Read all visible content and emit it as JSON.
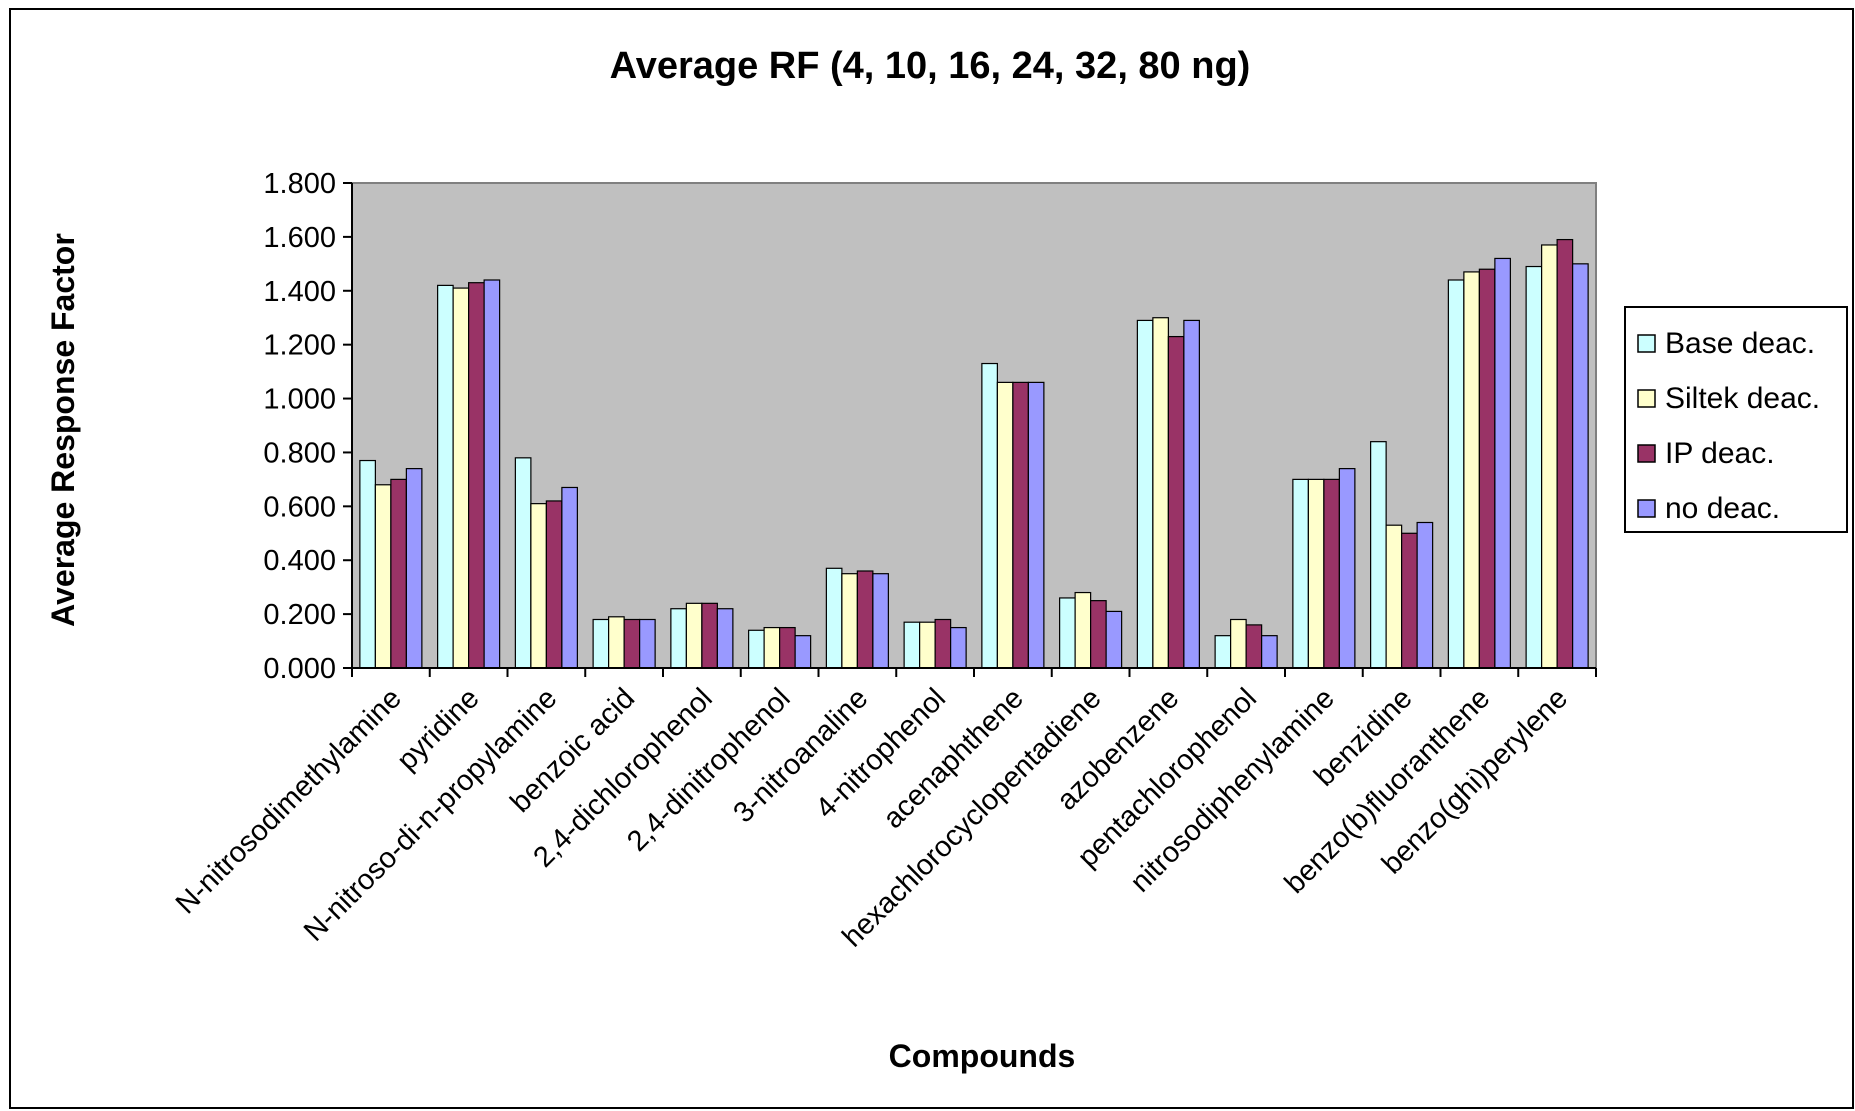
{
  "chart_data": {
    "type": "bar",
    "title": "Average RF (4, 10, 16, 24, 32, 80 ng)",
    "xlabel": "Compounds",
    "ylabel": "Average Response Factor",
    "ylim": [
      0,
      1.8
    ],
    "yticks": [
      "0.000",
      "0.200",
      "0.400",
      "0.600",
      "0.800",
      "1.000",
      "1.200",
      "1.400",
      "1.600",
      "1.800"
    ],
    "grid": false,
    "legend_position": "right",
    "categories": [
      "N-nitrosodimethylamine",
      "pyridine",
      "N-nitroso-di-n-propylamine",
      "benzoic acid",
      "2,4-dichlorophenol",
      "2,4-dinitrophenol",
      "3-nitroanaline",
      "4-nitrophenol",
      "acenaphthene",
      "hexachlorocyclopentadiene",
      "azobenzene",
      "pentachlorophenol",
      "nitrosodiphenylamine",
      "benzidine",
      "benzo(b)fluoranthene",
      "benzo(ghi)perylene"
    ],
    "series": [
      {
        "name": "Base deac.",
        "color": "#CCFFFF",
        "values": [
          0.77,
          1.42,
          0.78,
          0.18,
          0.22,
          0.14,
          0.37,
          0.17,
          1.13,
          0.26,
          1.29,
          0.12,
          0.7,
          0.84,
          1.44,
          1.49
        ]
      },
      {
        "name": "Siltek deac.",
        "color": "#FFFFCC",
        "values": [
          0.68,
          1.41,
          0.61,
          0.19,
          0.24,
          0.15,
          0.35,
          0.17,
          1.06,
          0.28,
          1.3,
          0.18,
          0.7,
          0.53,
          1.47,
          1.57
        ]
      },
      {
        "name": "IP deac.",
        "color": "#993366",
        "values": [
          0.7,
          1.43,
          0.62,
          0.18,
          0.24,
          0.15,
          0.36,
          0.18,
          1.06,
          0.25,
          1.23,
          0.16,
          0.7,
          0.5,
          1.48,
          1.59
        ]
      },
      {
        "name": "no deac.",
        "color": "#9999FF",
        "values": [
          0.74,
          1.44,
          0.67,
          0.18,
          0.22,
          0.12,
          0.35,
          0.15,
          1.06,
          0.21,
          1.29,
          0.12,
          0.74,
          0.54,
          1.52,
          1.5
        ]
      }
    ],
    "plot_background": "#C0C0C0"
  }
}
